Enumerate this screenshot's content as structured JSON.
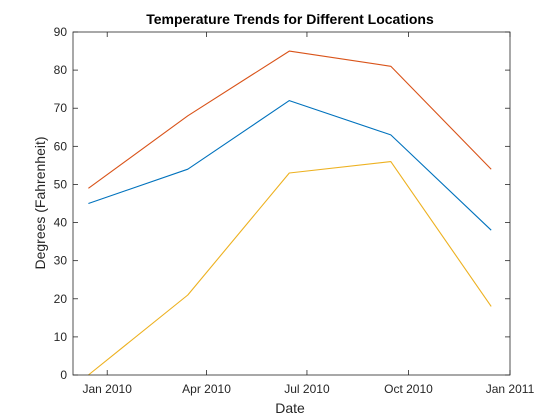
{
  "chart_data": {
    "type": "line",
    "title": "Temperature Trends for Different Locations",
    "xlabel": "Date",
    "ylabel": "Degrees (Fahrenheit)",
    "xlim": [
      "2009-12-01",
      "2011-01-01"
    ],
    "ylim": [
      0,
      90
    ],
    "grid": false,
    "legend": "none",
    "x": [
      "2009-12-15",
      "2010-03-15",
      "2010-06-15",
      "2010-09-15",
      "2010-12-15"
    ],
    "xticks": [
      {
        "date": "2010-01-01",
        "label": "Jan 2010"
      },
      {
        "date": "2010-04-01",
        "label": "Apr 2010"
      },
      {
        "date": "2010-07-01",
        "label": "Jul 2010"
      },
      {
        "date": "2010-10-01",
        "label": "Oct 2010"
      },
      {
        "date": "2011-01-01",
        "label": "Jan 2011"
      }
    ],
    "yticks": [
      0,
      10,
      20,
      30,
      40,
      50,
      60,
      70,
      80,
      90
    ],
    "series": [
      {
        "values": [
          45,
          54,
          72,
          63,
          38
        ],
        "color": "#0072BD"
      },
      {
        "values": [
          49,
          68,
          85,
          81,
          54
        ],
        "color": "#D95319"
      },
      {
        "values": [
          0,
          21,
          53,
          56,
          18
        ],
        "color": "#EDB120"
      }
    ]
  }
}
